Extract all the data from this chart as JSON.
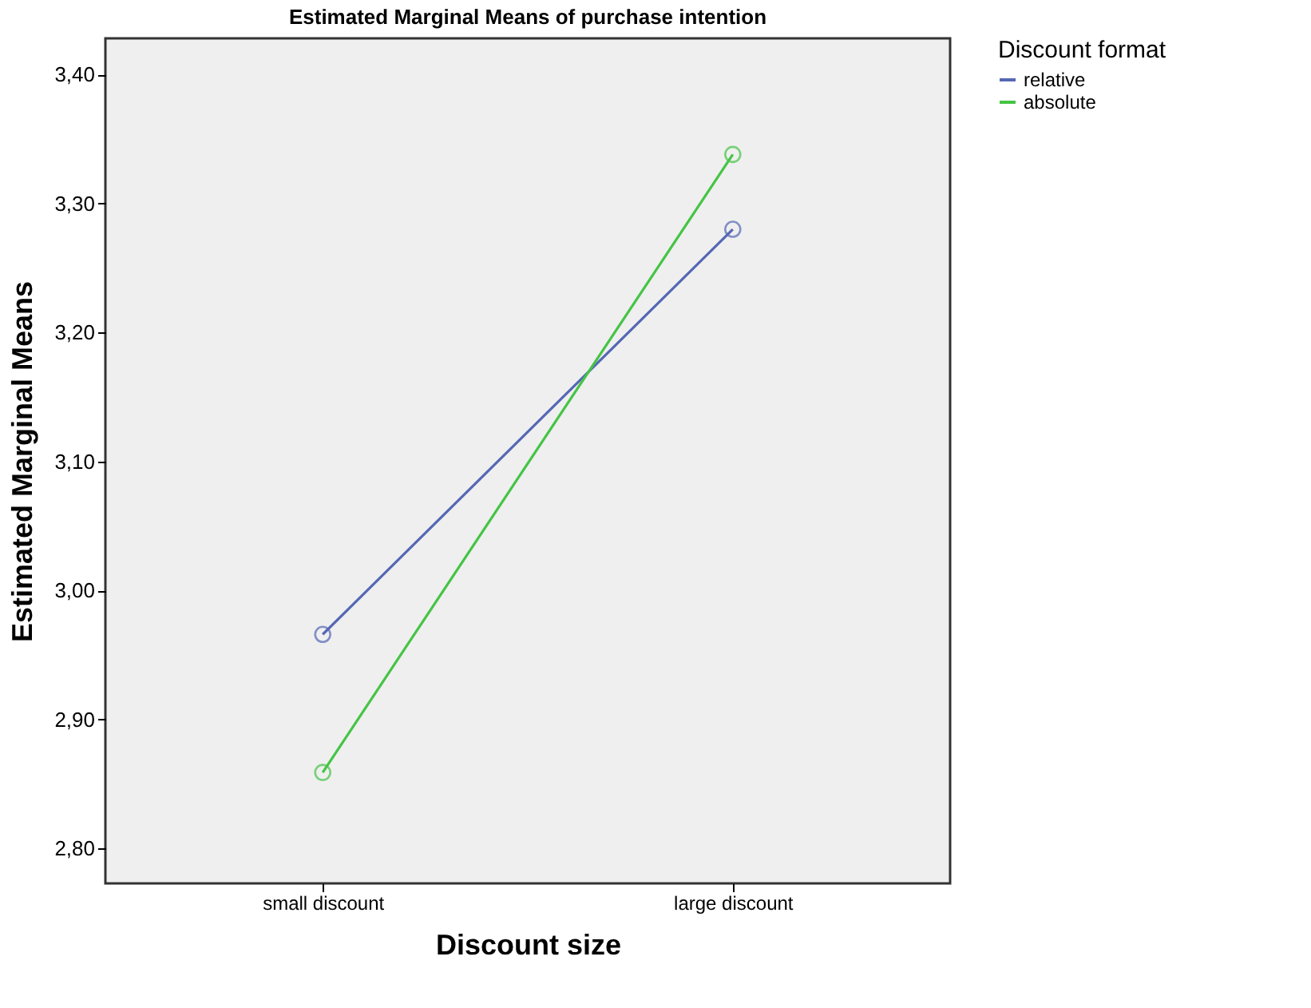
{
  "chart_data": {
    "type": "line",
    "title": "Estimated Marginal Means of purchase intention",
    "xlabel": "Discount size",
    "ylabel": "Estimated Marginal Means",
    "legend_title": "Discount format",
    "categories": [
      "small discount",
      "large discount"
    ],
    "series": [
      {
        "name": "relative",
        "color": "#5567b4",
        "values": [
          2.966,
          3.28
        ]
      },
      {
        "name": "absolute",
        "color": "#45c445",
        "values": [
          2.859,
          3.338
        ]
      }
    ],
    "ylim": [
      2.773,
      3.428
    ],
    "yticks": [
      {
        "value": 2.8,
        "label": "2,80"
      },
      {
        "value": 2.9,
        "label": "2,90"
      },
      {
        "value": 3.0,
        "label": "3,00"
      },
      {
        "value": 3.1,
        "label": "3,10"
      },
      {
        "value": 3.2,
        "label": "3,20"
      },
      {
        "value": 3.3,
        "label": "3,30"
      },
      {
        "value": 3.4,
        "label": "3,40"
      }
    ],
    "marker": "circle",
    "line_style": "solid",
    "legend": "top right",
    "grid": false
  }
}
